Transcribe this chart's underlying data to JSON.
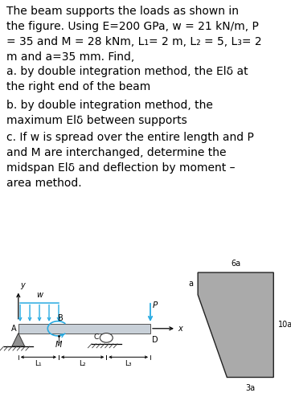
{
  "bg_color": "#ffffff",
  "text_color": "#000000",
  "paragraph_text": "The beam supports the loads as shown in\nthe figure. Using E=200 GPa, w = 21 kN/m, P\n= 35 and M = 28 kNm, L₁= 2 m, L₂ = 5, L₃= 2\nm and a=35 mm. Find,",
  "item_a": "a. by double integration method, the Elδ at\nthe right end of the beam",
  "item_b": "b. by double integration method, the\nmaximum Elδ between supports",
  "item_c": "c. If w is spread over the entire length and P\nand M are interchanged, determine the\nmidspan Elδ and deflection by moment –\narea method.",
  "beam_color": "#c8d0d8",
  "support_color": "#909090",
  "load_color": "#29abe2",
  "cross_section_color": "#aaaaaa",
  "font_size_main": 10.0,
  "font_size_small": 7.0
}
